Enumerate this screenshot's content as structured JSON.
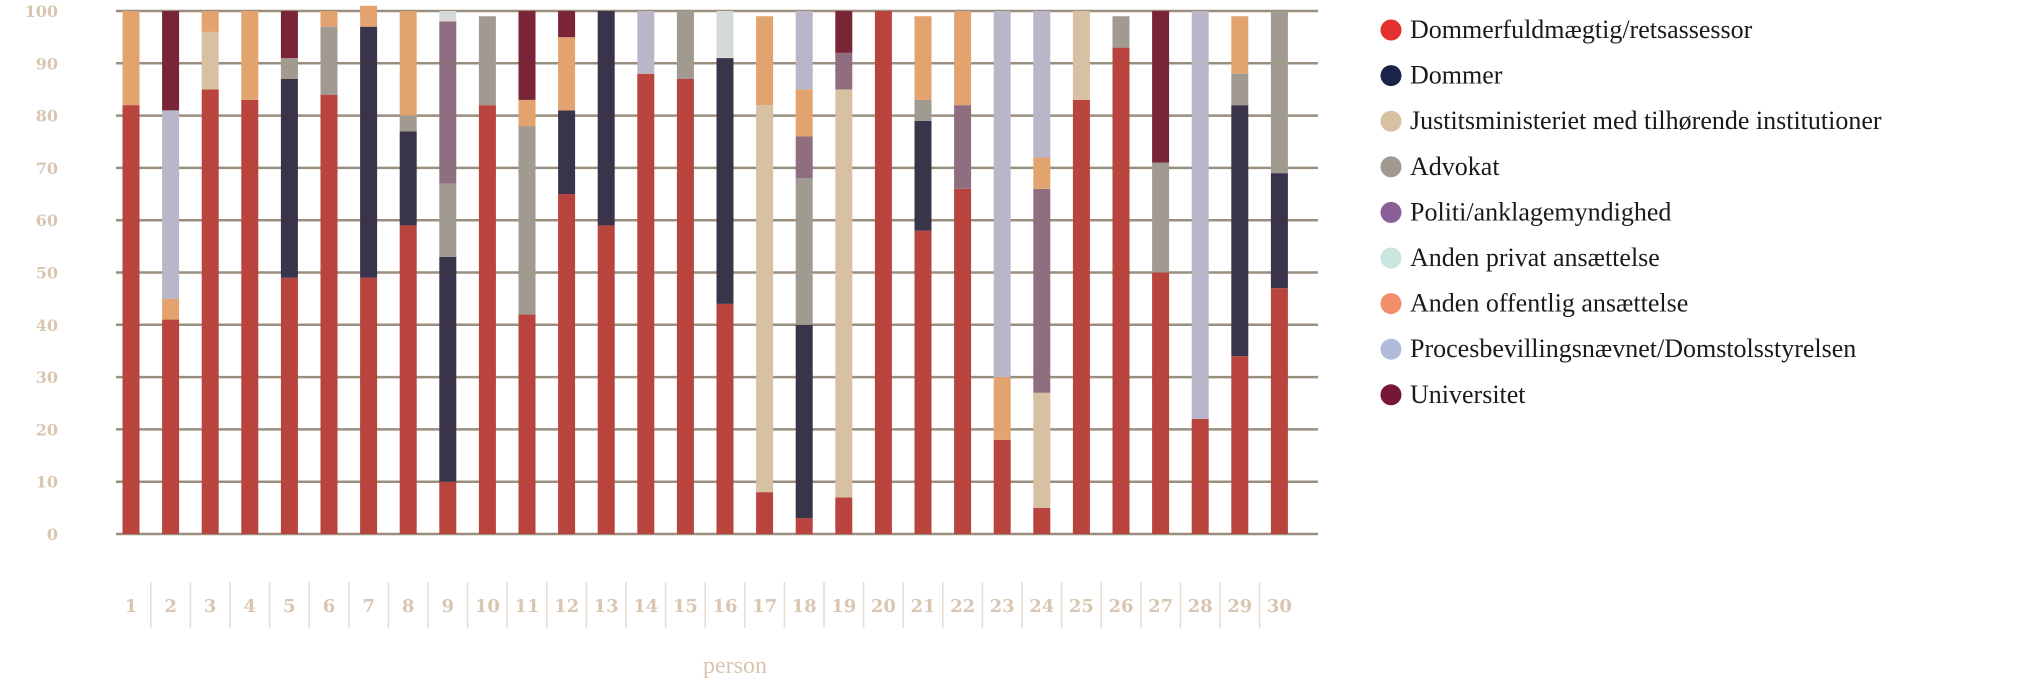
{
  "chart_data": {
    "type": "bar",
    "stacked": true,
    "xlabel": "person",
    "ylabel": "",
    "ylim": [
      0,
      100
    ],
    "yticks": [
      0,
      10,
      20,
      30,
      40,
      50,
      60,
      70,
      80,
      90,
      100
    ],
    "grid": true,
    "legend_position": "right",
    "categories": [
      "1",
      "2",
      "3",
      "4",
      "5",
      "6",
      "7",
      "8",
      "9",
      "10",
      "11",
      "12",
      "13",
      "14",
      "15",
      "16",
      "17",
      "18",
      "19",
      "20",
      "21",
      "22",
      "23",
      "24",
      "25",
      "26",
      "27",
      "28",
      "29",
      "30"
    ],
    "series": [
      {
        "name": "Dommerfuldmægtig/retsassessor",
        "color": "#b9433d",
        "legend_color": "#e3312f",
        "values": [
          82,
          41,
          85,
          83,
          49,
          84,
          49,
          59,
          10,
          82,
          42,
          65,
          59,
          88,
          87,
          44,
          8,
          3,
          7,
          100,
          58,
          66,
          18,
          5,
          83,
          93,
          50,
          22,
          34,
          47
        ]
      },
      {
        "name": "Dommer",
        "color": "#3a344a",
        "legend_color": "#1b2448",
        "values": [
          0,
          0,
          0,
          0,
          38,
          0,
          48,
          18,
          43,
          0,
          0,
          16,
          41,
          0,
          0,
          47,
          0,
          37,
          0,
          0,
          21,
          0,
          0,
          0,
          0,
          0,
          0,
          0,
          48,
          22
        ]
      },
      {
        "name": "Justitsministeriet med tilhørende institutioner",
        "color": "#d8c0a3",
        "legend_color": "#d8c0a3",
        "values": [
          0,
          0,
          11,
          0,
          0,
          0,
          0,
          0,
          0,
          0,
          0,
          0,
          0,
          0,
          0,
          0,
          74,
          0,
          78,
          0,
          0,
          0,
          0,
          22,
          17,
          0,
          0,
          0,
          0,
          0
        ]
      },
      {
        "name": "Advokat",
        "color": "#a09a90",
        "legend_color": "#a09a90",
        "values": [
          0,
          0,
          0,
          0,
          4,
          13,
          0,
          3,
          14,
          17,
          36,
          0,
          0,
          0,
          13,
          0,
          0,
          28,
          0,
          0,
          4,
          0,
          0,
          0,
          0,
          6,
          21,
          0,
          6,
          31
        ]
      },
      {
        "name": "Politi/anklagemyndighed",
        "color": "#8f6e80",
        "legend_color": "#8a5f96",
        "values": [
          0,
          0,
          0,
          0,
          0,
          0,
          0,
          0,
          31,
          0,
          0,
          0,
          0,
          0,
          0,
          0,
          0,
          8,
          7,
          0,
          0,
          16,
          0,
          39,
          0,
          0,
          0,
          0,
          0,
          0
        ]
      },
      {
        "name": "Anden privat ansættelse",
        "color": "#d5d9d8",
        "legend_color": "#c8e6df",
        "values": [
          0,
          0,
          0,
          0,
          0,
          0,
          0,
          0,
          2,
          0,
          0,
          0,
          0,
          0,
          0,
          9,
          0,
          0,
          0,
          0,
          0,
          0,
          0,
          0,
          0,
          0,
          0,
          0,
          0,
          0
        ]
      },
      {
        "name": "Anden offentlig ansættelse",
        "color": "#e3a36e",
        "legend_color": "#f28e6c",
        "values": [
          18,
          4,
          4,
          17,
          0,
          3,
          4,
          20,
          0,
          0,
          5,
          14,
          0,
          0,
          0,
          0,
          17,
          9,
          0,
          0,
          16,
          18,
          12,
          6,
          0,
          0,
          0,
          0,
          11,
          0
        ]
      },
      {
        "name": "Procesbevillingsnævnet/Domstolsstyrelsen",
        "color": "#b8b6c8",
        "legend_color": "#b1bcdb",
        "values": [
          0,
          36,
          0,
          0,
          0,
          0,
          0,
          0,
          0,
          0,
          0,
          0,
          0,
          12,
          0,
          0,
          0,
          15,
          0,
          0,
          0,
          0,
          70,
          28,
          0,
          0,
          0,
          78,
          0,
          0
        ]
      },
      {
        "name": "Universitet",
        "color": "#7a2438",
        "legend_color": "#761835",
        "values": [
          0,
          19,
          0,
          0,
          9,
          0,
          0,
          0,
          0,
          0,
          17,
          5,
          0,
          0,
          0,
          0,
          0,
          0,
          8,
          0,
          0,
          0,
          0,
          0,
          0,
          0,
          29,
          0,
          0,
          0
        ]
      }
    ]
  }
}
